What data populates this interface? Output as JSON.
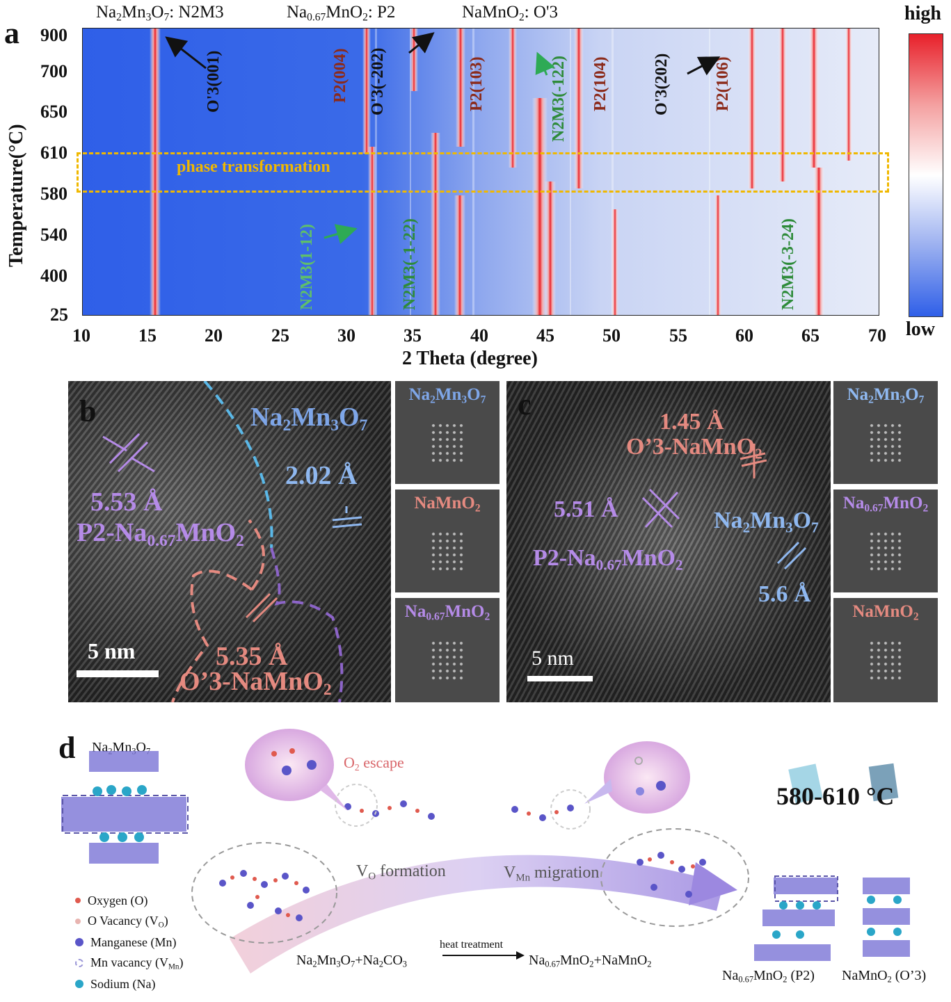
{
  "panel_a": {
    "letter": "a",
    "x_axis_label": "2 Theta (degree)",
    "y_axis_label": "Temperature(°C)",
    "x_ticks": [
      "10",
      "15",
      "20",
      "25",
      "30",
      "35",
      "40",
      "45",
      "50",
      "55",
      "60",
      "65",
      "70"
    ],
    "y_ticks": [
      "900",
      "700",
      "650",
      "610",
      "580",
      "540",
      "400",
      "25"
    ],
    "colorbar_high": "high",
    "colorbar_low": "low",
    "phase_label": "phase transformation",
    "top_labels": {
      "n2m3": "Na2Mn3O7: N2M3",
      "p2": "Na0.67MnO2: P2",
      "o3": "NaMnO2: O'3"
    },
    "peak_labels": [
      {
        "text": "O'3(001)",
        "color": "#111111"
      },
      {
        "text": "P2(004)",
        "color": "#8b2a1a"
      },
      {
        "text": "O'3(-202)",
        "color": "#111111"
      },
      {
        "text": "P2(103)",
        "color": "#8b2a1a"
      },
      {
        "text": "N2M3(-122)",
        "color": "#2e8b3a"
      },
      {
        "text": "P2(104)",
        "color": "#8b2a1a"
      },
      {
        "text": "O'3(202)",
        "color": "#111111"
      },
      {
        "text": "P2(106)",
        "color": "#8b2a1a"
      },
      {
        "text": "N2M3(1-12)",
        "color": "#5fbf6a"
      },
      {
        "text": "N2M3(-1-22)",
        "color": "#2e8b3a"
      },
      {
        "text": "N2M3(-3-24)",
        "color": "#2e8b3a"
      }
    ]
  },
  "panel_b": {
    "letter": "b",
    "n2m3_label": "Na2Mn3O7",
    "d_202": "2.02 Å",
    "d_553": "5.53 Å",
    "p2_label": "P2-Na0.67MnO2",
    "d_535": "5.35 Å",
    "o3_label": "O’3-NaMnO2",
    "scale": "5 nm",
    "fft": [
      "Na2Mn3O7",
      "NaMnO2",
      "Na0.67MnO2"
    ]
  },
  "panel_c": {
    "letter": "c",
    "d_145": "1.45 Å",
    "o3_label": "O’3-NaMnO2",
    "d_551": "5.51 Å",
    "p2_label": "P2-Na0.67MnO2",
    "n2m3_label": "Na2Mn3O7",
    "d_56": "5.6 Å",
    "scale": "5 nm",
    "fft": [
      "Na2Mn3O7",
      "Na0.67MnO2",
      "NaMnO2"
    ]
  },
  "panel_d": {
    "letter": "d",
    "start_label": "Na2Mn3O7",
    "o2_escape": "O2 escape",
    "vo_formation": "VO formation",
    "vmn_migration": "VMn migration",
    "temperature": "580-610 °C",
    "reaction_left": "Na2Mn3O7+Na2CO3",
    "reaction_arrow": "heat treatment",
    "reaction_right": "Na0.67MnO2+NaMnO2",
    "product_p2": "Na0.67MnO2 (P2)",
    "product_o3": "NaMnO2 (O’3)",
    "legend": [
      {
        "label": "Oxygen (O)",
        "color": "#e05a4e"
      },
      {
        "label": "O Vacancy (VO)",
        "color": "#e8b4b0"
      },
      {
        "label": "Manganese (Mn)",
        "color": "#5a55c8"
      },
      {
        "label": "Mn vacancy (VMn)",
        "color": "#c9c6ee"
      },
      {
        "label": "Sodium (Na)",
        "color": "#2aa6c8"
      }
    ]
  }
}
